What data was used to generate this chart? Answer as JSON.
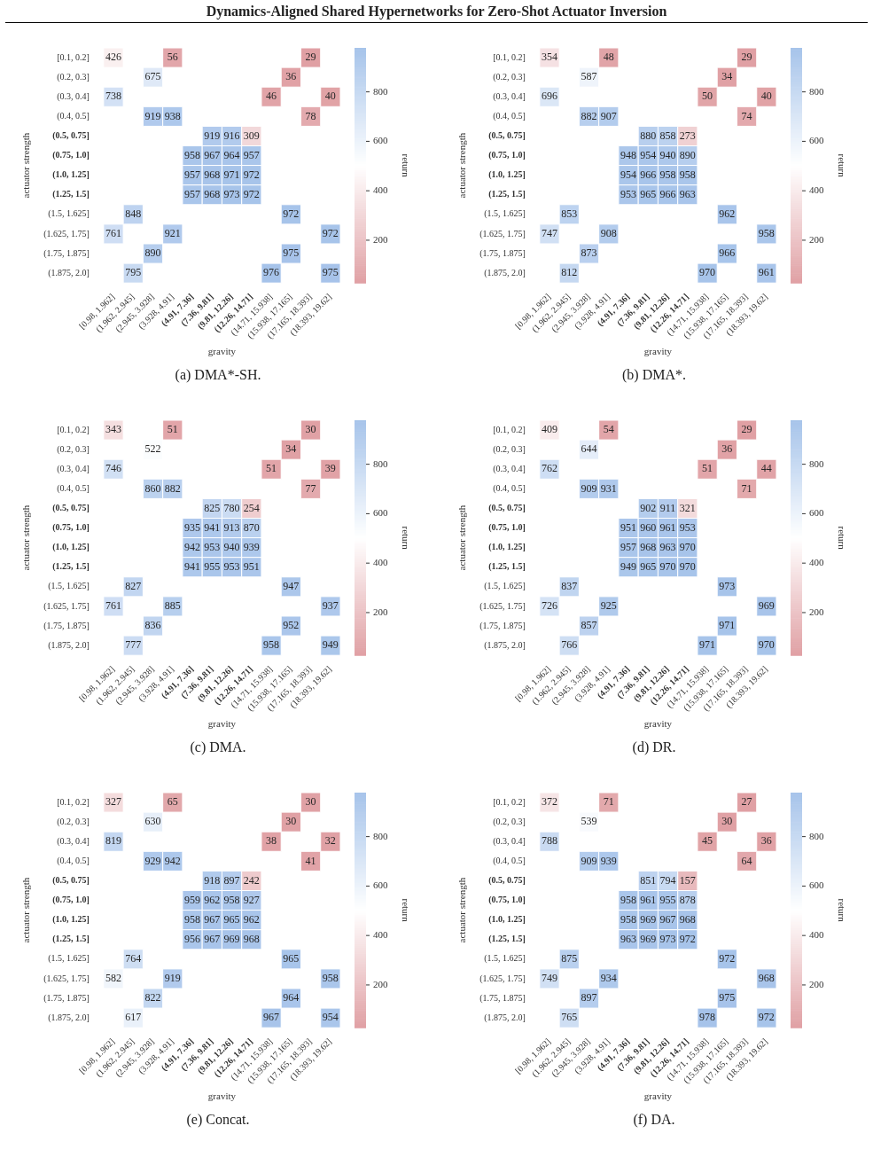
{
  "chart_data": [
    {
      "type": "other",
      "title": "Dynamics-Aligned Shared Hypernetworks for Zero-Shot Actuator Inversion"
    },
    {
      "type": "heatmap",
      "title": "(a) DMA*-SH.",
      "xlabel": "gravity",
      "ylabel": "actuator strength",
      "clabel": "return",
      "data_labels": true,
      "clim": [
        27,
        978
      ],
      "cticks": [
        200,
        400,
        600,
        800
      ],
      "categories": [
        "[0.98, 1.962]",
        "(1.962, 2.945]",
        "(2.945, 3.928]",
        "(3.928, 4.91]",
        "(4.91, 7.36]",
        "(7.36, 9.81]",
        "(9.81, 12.26]",
        "(12.26, 14.71]",
        "(14.71, 15.938]",
        "(15.938, 17.165]",
        "(17.165, 18.393]",
        "(18.393, 19.62]"
      ],
      "y_categories": [
        "[0.1, 0.2]",
        "(0.2, 0.3]",
        "(0.3, 0.4]",
        "(0.4, 0.5]",
        "(0.5, 0.75]",
        "(0.75, 1.0]",
        "(1.0, 1.25]",
        "(1.25, 1.5]",
        "(1.5, 1.625]",
        "(1.625, 1.75]",
        "(1.75, 1.875]",
        "(1.875, 2.0]"
      ],
      "cells": [
        [
          426,
          null,
          null,
          56,
          null,
          null,
          null,
          null,
          null,
          null,
          29,
          null
        ],
        [
          null,
          null,
          675,
          null,
          null,
          null,
          null,
          null,
          null,
          36,
          null,
          null
        ],
        [
          738,
          null,
          null,
          null,
          null,
          null,
          null,
          null,
          46,
          null,
          null,
          40
        ],
        [
          null,
          null,
          919,
          938,
          null,
          null,
          null,
          null,
          null,
          null,
          78,
          null
        ],
        [
          null,
          null,
          null,
          null,
          null,
          919,
          916,
          309,
          null,
          null,
          null,
          null
        ],
        [
          null,
          null,
          null,
          null,
          958,
          967,
          964,
          957,
          null,
          null,
          null,
          null
        ],
        [
          null,
          null,
          null,
          null,
          957,
          968,
          971,
          972,
          null,
          null,
          null,
          null
        ],
        [
          null,
          null,
          null,
          null,
          957,
          968,
          973,
          972,
          null,
          null,
          null,
          null
        ],
        [
          null,
          848,
          null,
          null,
          null,
          null,
          null,
          null,
          null,
          972,
          null,
          null
        ],
        [
          761,
          null,
          null,
          921,
          null,
          null,
          null,
          null,
          null,
          null,
          null,
          972
        ],
        [
          null,
          null,
          890,
          null,
          null,
          null,
          null,
          null,
          null,
          975,
          null,
          null
        ],
        [
          null,
          795,
          null,
          null,
          null,
          null,
          null,
          null,
          976,
          null,
          null,
          975
        ]
      ]
    },
    {
      "type": "heatmap",
      "title": "(b) DMA*.",
      "xlabel": "gravity",
      "ylabel": "actuator strength",
      "clabel": "return",
      "data_labels": true,
      "clim": [
        27,
        978
      ],
      "cticks": [
        200,
        400,
        600,
        800
      ],
      "categories": [
        "[0.98, 1.962]",
        "(1.962, 2.945]",
        "(2.945, 3.928]",
        "(3.928, 4.91]",
        "(4.91, 7.36]",
        "(7.36, 9.81]",
        "(9.81, 12.26]",
        "(12.26, 14.71]",
        "(14.71, 15.938]",
        "(15.938, 17.165]",
        "(17.165, 18.393]",
        "(18.393, 19.62]"
      ],
      "y_categories": [
        "[0.1, 0.2]",
        "(0.2, 0.3]",
        "(0.3, 0.4]",
        "(0.4, 0.5]",
        "(0.5, 0.75]",
        "(0.75, 1.0]",
        "(1.0, 1.25]",
        "(1.25, 1.5]",
        "(1.5, 1.625]",
        "(1.625, 1.75]",
        "(1.75, 1.875]",
        "(1.875, 2.0]"
      ],
      "cells": [
        [
          354,
          null,
          null,
          48,
          null,
          null,
          null,
          null,
          null,
          null,
          29,
          null
        ],
        [
          null,
          null,
          587,
          null,
          null,
          null,
          null,
          null,
          null,
          34,
          null,
          null
        ],
        [
          696,
          null,
          null,
          null,
          null,
          null,
          null,
          null,
          50,
          null,
          null,
          40
        ],
        [
          null,
          null,
          882,
          907,
          null,
          null,
          null,
          null,
          null,
          null,
          74,
          null
        ],
        [
          null,
          null,
          null,
          null,
          null,
          880,
          858,
          273,
          null,
          null,
          null,
          null
        ],
        [
          null,
          null,
          null,
          null,
          948,
          954,
          940,
          890,
          null,
          null,
          null,
          null
        ],
        [
          null,
          null,
          null,
          null,
          954,
          966,
          958,
          958,
          null,
          null,
          null,
          null
        ],
        [
          null,
          null,
          null,
          null,
          953,
          965,
          966,
          963,
          null,
          null,
          null,
          null
        ],
        [
          null,
          853,
          null,
          null,
          null,
          null,
          null,
          null,
          null,
          962,
          null,
          null
        ],
        [
          747,
          null,
          null,
          908,
          null,
          null,
          null,
          null,
          null,
          null,
          null,
          958
        ],
        [
          null,
          null,
          873,
          null,
          null,
          null,
          null,
          null,
          null,
          966,
          null,
          null
        ],
        [
          null,
          812,
          null,
          null,
          null,
          null,
          null,
          null,
          970,
          null,
          null,
          961
        ]
      ]
    },
    {
      "type": "heatmap",
      "title": "(c) DMA.",
      "xlabel": "gravity",
      "ylabel": "actuator strength",
      "clabel": "return",
      "data_labels": true,
      "clim": [
        27,
        978
      ],
      "cticks": [
        200,
        400,
        600,
        800
      ],
      "categories": [
        "[0.98, 1.962]",
        "(1.962, 2.945]",
        "(2.945, 3.928]",
        "(3.928, 4.91]",
        "(4.91, 7.36]",
        "(7.36, 9.81]",
        "(9.81, 12.26]",
        "(12.26, 14.71]",
        "(14.71, 15.938]",
        "(15.938, 17.165]",
        "(17.165, 18.393]",
        "(18.393, 19.62]"
      ],
      "y_categories": [
        "[0.1, 0.2]",
        "(0.2, 0.3]",
        "(0.3, 0.4]",
        "(0.4, 0.5]",
        "(0.5, 0.75]",
        "(0.75, 1.0]",
        "(1.0, 1.25]",
        "(1.25, 1.5]",
        "(1.5, 1.625]",
        "(1.625, 1.75]",
        "(1.75, 1.875]",
        "(1.875, 2.0]"
      ],
      "cells": [
        [
          343,
          null,
          null,
          51,
          null,
          null,
          null,
          null,
          null,
          null,
          30,
          null
        ],
        [
          null,
          null,
          522,
          null,
          null,
          null,
          null,
          null,
          null,
          34,
          null,
          null
        ],
        [
          746,
          null,
          null,
          null,
          null,
          null,
          null,
          null,
          51,
          null,
          null,
          39
        ],
        [
          null,
          null,
          860,
          882,
          null,
          null,
          null,
          null,
          null,
          null,
          77,
          null
        ],
        [
          null,
          null,
          null,
          null,
          null,
          825,
          780,
          254,
          null,
          null,
          null,
          null
        ],
        [
          null,
          null,
          null,
          null,
          935,
          941,
          913,
          870,
          null,
          null,
          null,
          null
        ],
        [
          null,
          null,
          null,
          null,
          942,
          953,
          940,
          939,
          null,
          null,
          null,
          null
        ],
        [
          null,
          null,
          null,
          null,
          941,
          955,
          953,
          951,
          null,
          null,
          null,
          null
        ],
        [
          null,
          827,
          null,
          null,
          null,
          null,
          null,
          null,
          null,
          947,
          null,
          null
        ],
        [
          761,
          null,
          null,
          885,
          null,
          null,
          null,
          null,
          null,
          null,
          null,
          937
        ],
        [
          null,
          null,
          836,
          null,
          null,
          null,
          null,
          null,
          null,
          952,
          null,
          null
        ],
        [
          null,
          777,
          null,
          null,
          null,
          null,
          null,
          null,
          958,
          null,
          null,
          949
        ]
      ]
    },
    {
      "type": "heatmap",
      "title": "(d) DR.",
      "xlabel": "gravity",
      "ylabel": "actuator strength",
      "clabel": "return",
      "data_labels": true,
      "clim": [
        27,
        978
      ],
      "cticks": [
        200,
        400,
        600,
        800
      ],
      "categories": [
        "[0.98, 1.962]",
        "(1.962, 2.945]",
        "(2.945, 3.928]",
        "(3.928, 4.91]",
        "(4.91, 7.36]",
        "(7.36, 9.81]",
        "(9.81, 12.26]",
        "(12.26, 14.71]",
        "(14.71, 15.938]",
        "(15.938, 17.165]",
        "(17.165, 18.393]",
        "(18.393, 19.62]"
      ],
      "y_categories": [
        "[0.1, 0.2]",
        "(0.2, 0.3]",
        "(0.3, 0.4]",
        "(0.4, 0.5]",
        "(0.5, 0.75]",
        "(0.75, 1.0]",
        "(1.0, 1.25]",
        "(1.25, 1.5]",
        "(1.5, 1.625]",
        "(1.625, 1.75]",
        "(1.75, 1.875]",
        "(1.875, 2.0]"
      ],
      "cells": [
        [
          409,
          null,
          null,
          54,
          null,
          null,
          null,
          null,
          null,
          null,
          29,
          null
        ],
        [
          null,
          null,
          644,
          null,
          null,
          null,
          null,
          null,
          null,
          36,
          null,
          null
        ],
        [
          762,
          null,
          null,
          null,
          null,
          null,
          null,
          null,
          51,
          null,
          null,
          44
        ],
        [
          null,
          null,
          909,
          931,
          null,
          null,
          null,
          null,
          null,
          null,
          71,
          null
        ],
        [
          null,
          null,
          null,
          null,
          null,
          902,
          911,
          321,
          null,
          null,
          null,
          null
        ],
        [
          null,
          null,
          null,
          null,
          951,
          960,
          961,
          953,
          null,
          null,
          null,
          null
        ],
        [
          null,
          null,
          null,
          null,
          957,
          968,
          963,
          970,
          null,
          null,
          null,
          null
        ],
        [
          null,
          null,
          null,
          null,
          949,
          965,
          970,
          970,
          null,
          null,
          null,
          null
        ],
        [
          null,
          837,
          null,
          null,
          null,
          null,
          null,
          null,
          null,
          973,
          null,
          null
        ],
        [
          726,
          null,
          null,
          925,
          null,
          null,
          null,
          null,
          null,
          null,
          null,
          969
        ],
        [
          null,
          null,
          857,
          null,
          null,
          null,
          null,
          null,
          null,
          971,
          null,
          null
        ],
        [
          null,
          766,
          null,
          null,
          null,
          null,
          null,
          null,
          971,
          null,
          null,
          970
        ]
      ]
    },
    {
      "type": "heatmap",
      "title": "(e) Concat.",
      "xlabel": "gravity",
      "ylabel": "actuator strength",
      "clabel": "return",
      "data_labels": true,
      "clim": [
        27,
        978
      ],
      "cticks": [
        200,
        400,
        600,
        800
      ],
      "categories": [
        "[0.98, 1.962]",
        "(1.962, 2.945]",
        "(2.945, 3.928]",
        "(3.928, 4.91]",
        "(4.91, 7.36]",
        "(7.36, 9.81]",
        "(9.81, 12.26]",
        "(12.26, 14.71]",
        "(14.71, 15.938]",
        "(15.938, 17.165]",
        "(17.165, 18.393]",
        "(18.393, 19.62]"
      ],
      "y_categories": [
        "[0.1, 0.2]",
        "(0.2, 0.3]",
        "(0.3, 0.4]",
        "(0.4, 0.5]",
        "(0.5, 0.75]",
        "(0.75, 1.0]",
        "(1.0, 1.25]",
        "(1.25, 1.5]",
        "(1.5, 1.625]",
        "(1.625, 1.75]",
        "(1.75, 1.875]",
        "(1.875, 2.0]"
      ],
      "cells": [
        [
          327,
          null,
          null,
          65,
          null,
          null,
          null,
          null,
          null,
          null,
          30,
          null
        ],
        [
          null,
          null,
          630,
          null,
          null,
          null,
          null,
          null,
          null,
          30,
          null,
          null
        ],
        [
          819,
          null,
          null,
          null,
          null,
          null,
          null,
          null,
          38,
          null,
          null,
          32
        ],
        [
          null,
          null,
          929,
          942,
          null,
          null,
          null,
          null,
          null,
          null,
          41,
          null
        ],
        [
          null,
          null,
          null,
          null,
          null,
          918,
          897,
          242,
          null,
          null,
          null,
          null
        ],
        [
          null,
          null,
          null,
          null,
          959,
          962,
          958,
          927,
          null,
          null,
          null,
          null
        ],
        [
          null,
          null,
          null,
          null,
          958,
          967,
          965,
          962,
          null,
          null,
          null,
          null
        ],
        [
          null,
          null,
          null,
          null,
          956,
          967,
          969,
          968,
          null,
          null,
          null,
          null
        ],
        [
          null,
          764,
          null,
          null,
          null,
          null,
          null,
          null,
          null,
          965,
          null,
          null
        ],
        [
          582,
          null,
          null,
          919,
          null,
          null,
          null,
          null,
          null,
          null,
          null,
          958
        ],
        [
          null,
          null,
          822,
          null,
          null,
          null,
          null,
          null,
          null,
          964,
          null,
          null
        ],
        [
          null,
          617,
          null,
          null,
          null,
          null,
          null,
          null,
          967,
          null,
          null,
          954
        ]
      ]
    },
    {
      "type": "heatmap",
      "title": "(f) DA.",
      "xlabel": "gravity",
      "ylabel": "actuator strength",
      "clabel": "return",
      "data_labels": true,
      "clim": [
        27,
        978
      ],
      "cticks": [
        200,
        400,
        600,
        800
      ],
      "categories": [
        "[0.98, 1.962]",
        "(1.962, 2.945]",
        "(2.945, 3.928]",
        "(3.928, 4.91]",
        "(4.91, 7.36]",
        "(7.36, 9.81]",
        "(9.81, 12.26]",
        "(12.26, 14.71]",
        "(14.71, 15.938]",
        "(15.938, 17.165]",
        "(17.165, 18.393]",
        "(18.393, 19.62]"
      ],
      "y_categories": [
        "[0.1, 0.2]",
        "(0.2, 0.3]",
        "(0.3, 0.4]",
        "(0.4, 0.5]",
        "(0.5, 0.75]",
        "(0.75, 1.0]",
        "(1.0, 1.25]",
        "(1.25, 1.5]",
        "(1.5, 1.625]",
        "(1.625, 1.75]",
        "(1.75, 1.875]",
        "(1.875, 2.0]"
      ],
      "cells": [
        [
          372,
          null,
          null,
          71,
          null,
          null,
          null,
          null,
          null,
          null,
          27,
          null
        ],
        [
          null,
          null,
          539,
          null,
          null,
          null,
          null,
          null,
          null,
          30,
          null,
          null
        ],
        [
          788,
          null,
          null,
          null,
          null,
          null,
          null,
          null,
          45,
          null,
          null,
          36
        ],
        [
          null,
          null,
          909,
          939,
          null,
          null,
          null,
          null,
          null,
          null,
          64,
          null
        ],
        [
          null,
          null,
          null,
          null,
          null,
          851,
          794,
          157,
          null,
          null,
          null,
          null
        ],
        [
          null,
          null,
          null,
          null,
          958,
          961,
          955,
          878,
          null,
          null,
          null,
          null
        ],
        [
          null,
          null,
          null,
          null,
          958,
          969,
          967,
          968,
          null,
          null,
          null,
          null
        ],
        [
          null,
          null,
          null,
          null,
          963,
          969,
          973,
          972,
          null,
          null,
          null,
          null
        ],
        [
          null,
          875,
          null,
          null,
          null,
          null,
          null,
          null,
          null,
          972,
          null,
          null
        ],
        [
          749,
          null,
          null,
          934,
          null,
          null,
          null,
          null,
          null,
          null,
          null,
          968
        ],
        [
          null,
          null,
          897,
          null,
          null,
          null,
          null,
          null,
          null,
          975,
          null,
          null
        ],
        [
          null,
          765,
          null,
          null,
          null,
          null,
          null,
          null,
          978,
          null,
          null,
          972
        ]
      ]
    }
  ]
}
